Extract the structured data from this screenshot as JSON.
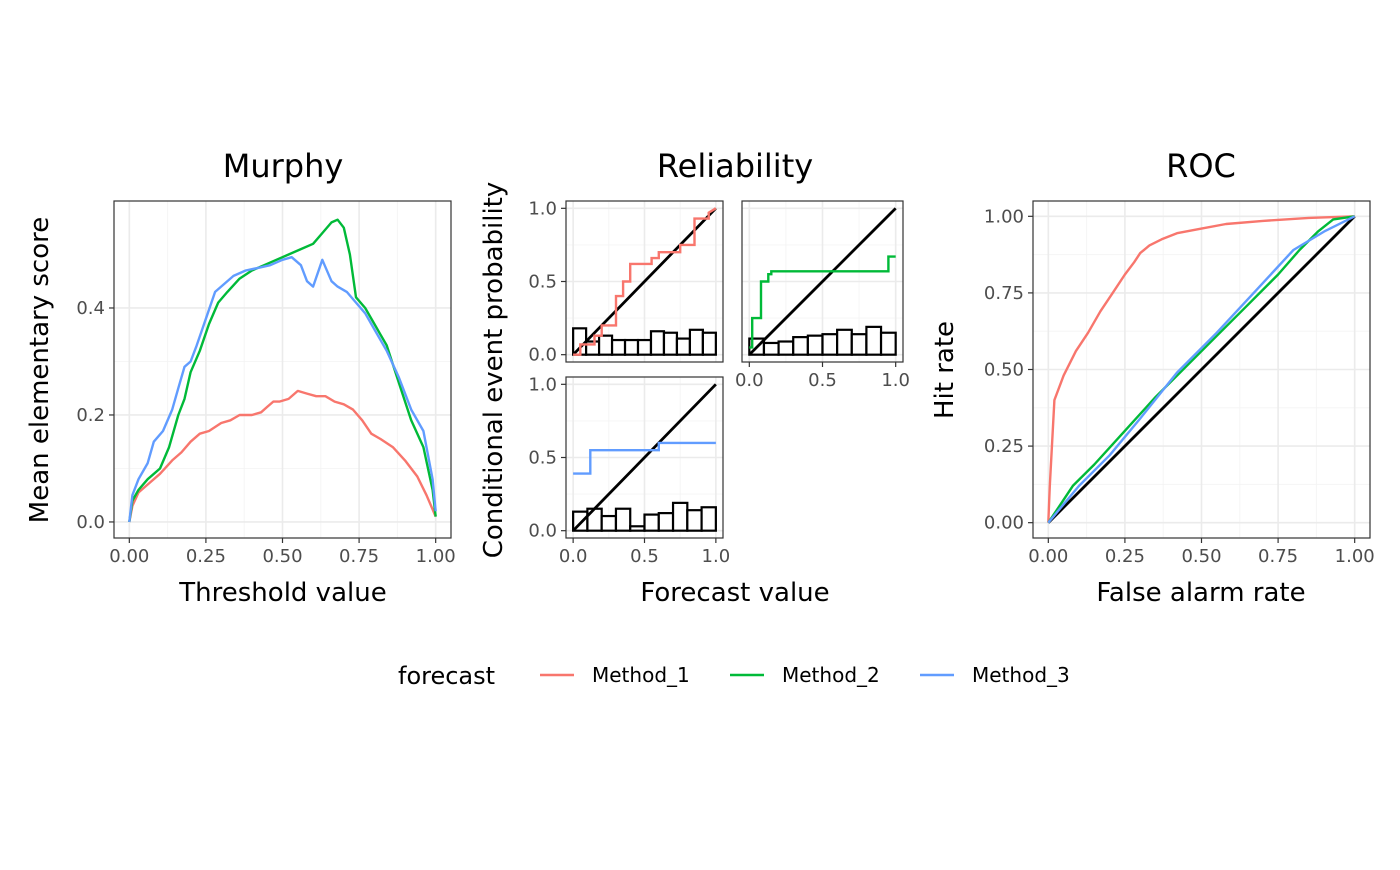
{
  "legend": {
    "title": "forecast",
    "entries": [
      {
        "name": "Method_1",
        "color": "#F8766D"
      },
      {
        "name": "Method_2",
        "color": "#00BA38"
      },
      {
        "name": "Method_3",
        "color": "#619CFF"
      }
    ]
  },
  "chart_data": [
    {
      "type": "line",
      "title": "Murphy",
      "xlabel": "Threshold value",
      "ylabel": "Mean elementary score",
      "xlim": [
        -0.05,
        1.05
      ],
      "ylim": [
        -0.03,
        0.6
      ],
      "xticks": [
        0,
        0.25,
        0.5,
        0.75,
        1
      ],
      "xtick_labels": [
        "0.00",
        "0.25",
        "0.50",
        "0.75",
        "1.00"
      ],
      "yticks": [
        0,
        0.2,
        0.4
      ],
      "ytick_labels": [
        "0.0",
        "0.2",
        "0.4"
      ],
      "grid": true,
      "series": [
        {
          "name": "Method_1",
          "color": "#F8766D",
          "x": [
            0,
            0.01,
            0.03,
            0.06,
            0.1,
            0.14,
            0.17,
            0.2,
            0.23,
            0.26,
            0.3,
            0.33,
            0.36,
            0.4,
            0.43,
            0.45,
            0.47,
            0.49,
            0.52,
            0.55,
            0.58,
            0.61,
            0.64,
            0.67,
            0.7,
            0.73,
            0.76,
            0.79,
            0.82,
            0.86,
            0.9,
            0.94,
            0.97,
            1.0
          ],
          "values": [
            0,
            0.03,
            0.055,
            0.07,
            0.09,
            0.115,
            0.13,
            0.15,
            0.165,
            0.17,
            0.185,
            0.19,
            0.2,
            0.2,
            0.205,
            0.215,
            0.225,
            0.225,
            0.23,
            0.245,
            0.24,
            0.235,
            0.235,
            0.225,
            0.22,
            0.21,
            0.19,
            0.165,
            0.155,
            0.14,
            0.115,
            0.085,
            0.05,
            0.01
          ]
        },
        {
          "name": "Method_2",
          "color": "#00BA38",
          "x": [
            0,
            0.01,
            0.03,
            0.06,
            0.1,
            0.13,
            0.16,
            0.18,
            0.2,
            0.23,
            0.26,
            0.29,
            0.32,
            0.36,
            0.4,
            0.44,
            0.48,
            0.52,
            0.56,
            0.6,
            0.63,
            0.66,
            0.68,
            0.7,
            0.72,
            0.74,
            0.77,
            0.8,
            0.84,
            0.88,
            0.92,
            0.96,
            0.99,
            1.0
          ],
          "values": [
            0,
            0.04,
            0.06,
            0.08,
            0.1,
            0.14,
            0.2,
            0.23,
            0.28,
            0.32,
            0.37,
            0.41,
            0.43,
            0.455,
            0.47,
            0.48,
            0.49,
            0.5,
            0.51,
            0.52,
            0.54,
            0.56,
            0.565,
            0.55,
            0.5,
            0.42,
            0.4,
            0.37,
            0.33,
            0.26,
            0.19,
            0.14,
            0.06,
            0.01
          ]
        },
        {
          "name": "Method_3",
          "color": "#619CFF",
          "x": [
            0,
            0.01,
            0.03,
            0.06,
            0.08,
            0.11,
            0.14,
            0.16,
            0.18,
            0.2,
            0.22,
            0.25,
            0.28,
            0.31,
            0.34,
            0.38,
            0.42,
            0.46,
            0.5,
            0.53,
            0.56,
            0.58,
            0.6,
            0.63,
            0.66,
            0.68,
            0.71,
            0.74,
            0.77,
            0.8,
            0.84,
            0.88,
            0.92,
            0.96,
            0.99,
            1.0
          ],
          "values": [
            0,
            0.05,
            0.08,
            0.11,
            0.15,
            0.17,
            0.21,
            0.25,
            0.29,
            0.3,
            0.33,
            0.38,
            0.43,
            0.445,
            0.46,
            0.47,
            0.475,
            0.48,
            0.49,
            0.495,
            0.48,
            0.45,
            0.44,
            0.49,
            0.45,
            0.44,
            0.43,
            0.41,
            0.39,
            0.36,
            0.32,
            0.27,
            0.21,
            0.17,
            0.08,
            0.02
          ]
        }
      ]
    },
    {
      "type": "line",
      "title": "Reliability",
      "xlabel": "Forecast value",
      "ylabel": "Conditional event probability",
      "grid": true,
      "panels": [
        {
          "series": "Method_1",
          "color": "#F8766D",
          "xlim": [
            -0.05,
            1.05
          ],
          "ylim": [
            -0.05,
            1.05
          ],
          "yticks": [
            0,
            0.5,
            1
          ],
          "ytick_labels": [
            "0.0",
            "0.5",
            "1.0"
          ],
          "calibration": {
            "x": [
              0,
              0.05,
              0.05,
              0.15,
              0.15,
              0.2,
              0.2,
              0.3,
              0.3,
              0.35,
              0.35,
              0.4,
              0.4,
              0.45,
              0.45,
              0.55,
              0.55,
              0.6,
              0.6,
              0.7,
              0.7,
              0.75,
              0.75,
              0.85,
              0.85,
              0.95,
              0.95,
              1.0
            ],
            "y": [
              0,
              0,
              0.07,
              0.07,
              0.13,
              0.13,
              0.2,
              0.2,
              0.4,
              0.4,
              0.5,
              0.5,
              0.62,
              0.62,
              0.62,
              0.62,
              0.66,
              0.66,
              0.7,
              0.7,
              0.7,
              0.7,
              0.75,
              0.75,
              0.93,
              0.93,
              0.97,
              1.0
            ]
          },
          "histogram": [
            0.18,
            0.09,
            0.13,
            0.1,
            0.1,
            0.1,
            0.16,
            0.15,
            0.11,
            0.17,
            0.15
          ]
        },
        {
          "series": "Method_2",
          "color": "#00BA38",
          "xlim": [
            -0.05,
            1.05
          ],
          "ylim": [
            -0.05,
            1.05
          ],
          "xticks": [
            0,
            0.5,
            1
          ],
          "xtick_labels": [
            "0.0",
            "0.5",
            "1.0"
          ],
          "calibration": {
            "x": [
              0,
              0.02,
              0.02,
              0.08,
              0.08,
              0.13,
              0.13,
              0.15,
              0.15,
              0.95,
              0.95,
              1.0
            ],
            "y": [
              0.05,
              0.05,
              0.25,
              0.25,
              0.5,
              0.5,
              0.55,
              0.55,
              0.57,
              0.57,
              0.67,
              0.67
            ]
          },
          "histogram": [
            0.11,
            0.08,
            0.09,
            0.12,
            0.13,
            0.14,
            0.17,
            0.14,
            0.19,
            0.15
          ]
        },
        {
          "series": "Method_3",
          "color": "#619CFF",
          "xlim": [
            -0.05,
            1.05
          ],
          "ylim": [
            -0.05,
            1.05
          ],
          "xticks": [
            0,
            0.5,
            1
          ],
          "xtick_labels": [
            "0.0",
            "0.5",
            "1.0"
          ],
          "yticks": [
            0,
            0.5,
            1
          ],
          "ytick_labels": [
            "0.0",
            "0.5",
            "1.0"
          ],
          "calibration": {
            "x": [
              0,
              0.12,
              0.12,
              0.55,
              0.55,
              0.6,
              0.6,
              1.0
            ],
            "y": [
              0.39,
              0.39,
              0.55,
              0.55,
              0.55,
              0.55,
              0.6,
              0.6
            ]
          },
          "histogram": [
            0.13,
            0.15,
            0.1,
            0.15,
            0.03,
            0.11,
            0.12,
            0.19,
            0.14,
            0.16
          ]
        }
      ]
    },
    {
      "type": "line",
      "title": "ROC",
      "xlabel": "False alarm rate",
      "ylabel": "Hit rate",
      "xlim": [
        -0.05,
        1.05
      ],
      "ylim": [
        -0.05,
        1.05
      ],
      "xticks": [
        0,
        0.25,
        0.5,
        0.75,
        1
      ],
      "xtick_labels": [
        "0.00",
        "0.25",
        "0.50",
        "0.75",
        "1.00"
      ],
      "yticks": [
        0,
        0.25,
        0.5,
        0.75,
        1
      ],
      "ytick_labels": [
        "0.00",
        "0.25",
        "0.50",
        "0.75",
        "1.00"
      ],
      "grid": true,
      "series": [
        {
          "name": "Method_1",
          "color": "#F8766D",
          "x": [
            0,
            0.005,
            0.02,
            0.05,
            0.09,
            0.13,
            0.17,
            0.21,
            0.25,
            0.28,
            0.3,
            0.33,
            0.37,
            0.42,
            0.5,
            0.58,
            0.7,
            0.85,
            1.0
          ],
          "values": [
            0,
            0.12,
            0.4,
            0.48,
            0.56,
            0.62,
            0.69,
            0.75,
            0.81,
            0.85,
            0.88,
            0.905,
            0.925,
            0.945,
            0.96,
            0.975,
            0.985,
            0.995,
            1.0
          ]
        },
        {
          "name": "Method_2",
          "color": "#00BA38",
          "x": [
            0,
            0.04,
            0.08,
            0.15,
            0.25,
            0.35,
            0.45,
            0.55,
            0.65,
            0.75,
            0.82,
            0.88,
            0.93,
            1.0
          ],
          "values": [
            0,
            0.06,
            0.12,
            0.19,
            0.3,
            0.41,
            0.51,
            0.61,
            0.71,
            0.81,
            0.89,
            0.95,
            0.99,
            1.0
          ]
        },
        {
          "name": "Method_3",
          "color": "#619CFF",
          "x": [
            0,
            0.05,
            0.1,
            0.2,
            0.3,
            0.42,
            0.55,
            0.68,
            0.8,
            0.9,
            1.0
          ],
          "values": [
            0,
            0.06,
            0.12,
            0.22,
            0.34,
            0.49,
            0.62,
            0.76,
            0.89,
            0.95,
            1.0
          ]
        },
        {
          "name": "diagonal",
          "color": "#000000",
          "x": [
            0,
            1
          ],
          "values": [
            0,
            1
          ]
        }
      ]
    }
  ]
}
